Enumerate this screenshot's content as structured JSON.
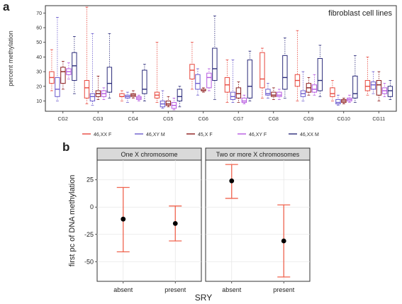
{
  "panel_a_label": "a",
  "panel_b_label": "b",
  "chart_data": [
    {
      "type": "box",
      "annotation": "fibroblast cell lines",
      "ylabel": "percent methylation",
      "xlabel": "",
      "ylim": [
        3,
        75
      ],
      "yticks": [
        10,
        20,
        30,
        40,
        50,
        60,
        70
      ],
      "categories": [
        "CG2",
        "CG3",
        "CG4",
        "CG5",
        "CG6",
        "CG7",
        "CG8",
        "CG9",
        "CG10",
        "CG11"
      ],
      "legend_position": "bottom",
      "series": [
        {
          "name": "46,XX F",
          "color": "#e8473d",
          "boxes": [
            [
              17,
              22,
              26,
              30,
              45
            ],
            [
              8,
              12,
              19,
              24,
              74
            ],
            [
              10,
              13,
              13,
              15,
              17
            ],
            [
              9,
              12,
              14,
              16,
              50
            ],
            [
              18,
              25,
              31,
              35,
              50
            ],
            [
              9,
              16,
              21,
              26,
              38
            ],
            [
              12,
              19,
              25,
              43,
              46
            ],
            [
              10,
              20,
              24,
              28,
              58
            ],
            [
              10,
              13,
              15,
              19,
              24
            ],
            [
              14,
              17,
              20,
              24,
              40
            ]
          ]
        },
        {
          "name": "46,XY M",
          "color": "#6a5acd",
          "boxes": [
            [
              10,
              13,
              18,
              26,
              67
            ],
            [
              7,
              10,
              13,
              15,
              56
            ],
            [
              9,
              12,
              13,
              14,
              16
            ],
            [
              5,
              6,
              8,
              10,
              17
            ],
            [
              14,
              18,
              22,
              28,
              32
            ],
            [
              9,
              11,
              13,
              16,
              38
            ],
            [
              12,
              14,
              15,
              18,
              22
            ],
            [
              10,
              13,
              15,
              17,
              30
            ],
            [
              7,
              8,
              9,
              11,
              14
            ],
            [
              15,
              18,
              21,
              23,
              30
            ]
          ]
        },
        {
          "name": "45,X F",
          "color": "#8b1a1a",
          "boxes": [
            [
              18,
              22,
              30,
              33,
              37
            ],
            [
              11,
              13,
              15,
              17,
              27
            ],
            [
              12,
              13,
              14,
              15,
              17
            ],
            [
              6,
              7,
              8,
              10,
              13
            ],
            [
              16,
              17,
              17,
              18,
              19
            ],
            [
              9,
              12,
              15,
              19,
              23
            ],
            [
              11,
              13,
              14,
              16,
              19
            ],
            [
              14,
              16,
              19,
              22,
              26
            ],
            [
              8,
              9,
              10,
              11,
              12
            ],
            [
              10,
              14,
              21,
              24,
              30
            ]
          ]
        },
        {
          "name": "46,XY F",
          "color": "#b557e0",
          "boxes": [
            [
              25,
              28,
              30,
              32,
              36
            ],
            [
              11,
              13,
              15,
              17,
              19
            ],
            [
              10,
              11,
              12,
              13,
              14
            ],
            [
              4,
              5,
              7,
              9,
              12
            ],
            [
              17,
              19,
              26,
              29,
              32
            ],
            [
              8,
              9,
              10,
              12,
              14
            ],
            [
              11,
              13,
              14,
              16,
              18
            ],
            [
              14,
              16,
              18,
              21,
              28
            ],
            [
              9,
              10,
              11,
              12,
              14
            ],
            [
              13,
              15,
              17,
              19,
              22
            ]
          ]
        },
        {
          "name": "46,XX M",
          "color": "#2b2b7a",
          "boxes": [
            [
              15,
              24,
              34,
              43,
              54
            ],
            [
              12,
              16,
              22,
              33,
              56
            ],
            [
              10,
              15,
              18,
              31,
              35
            ],
            [
              6,
              10,
              13,
              18,
              20
            ],
            [
              11,
              24,
              32,
              46,
              68
            ],
            [
              10,
              12,
              20,
              38,
              44
            ],
            [
              12,
              18,
              26,
              41,
              53
            ],
            [
              13,
              17,
              24,
              39,
              48
            ],
            [
              9,
              12,
              15,
              27,
              41
            ],
            [
              11,
              13,
              17,
              20,
              24
            ]
          ]
        }
      ]
    },
    {
      "type": "errorbar",
      "ylabel": "first pc of DNA methylation",
      "xlabel": "SRY",
      "ylim": [
        -68,
        43
      ],
      "yticks": [
        -50,
        -25,
        0,
        25
      ],
      "categories": [
        "absent",
        "present"
      ],
      "point_color": "#000000",
      "bar_color": "#f0644f",
      "facets": [
        {
          "title": "One X chromosome",
          "points": [
            {
              "x": "absent",
              "y": -11,
              "lower": -41,
              "upper": 18
            },
            {
              "x": "present",
              "y": -15,
              "lower": -31,
              "upper": 1
            }
          ]
        },
        {
          "title": "Two or more X chromosomes",
          "points": [
            {
              "x": "absent",
              "y": 24,
              "lower": 8,
              "upper": 39
            },
            {
              "x": "present",
              "y": -31,
              "lower": -64,
              "upper": 2
            }
          ]
        }
      ]
    }
  ]
}
